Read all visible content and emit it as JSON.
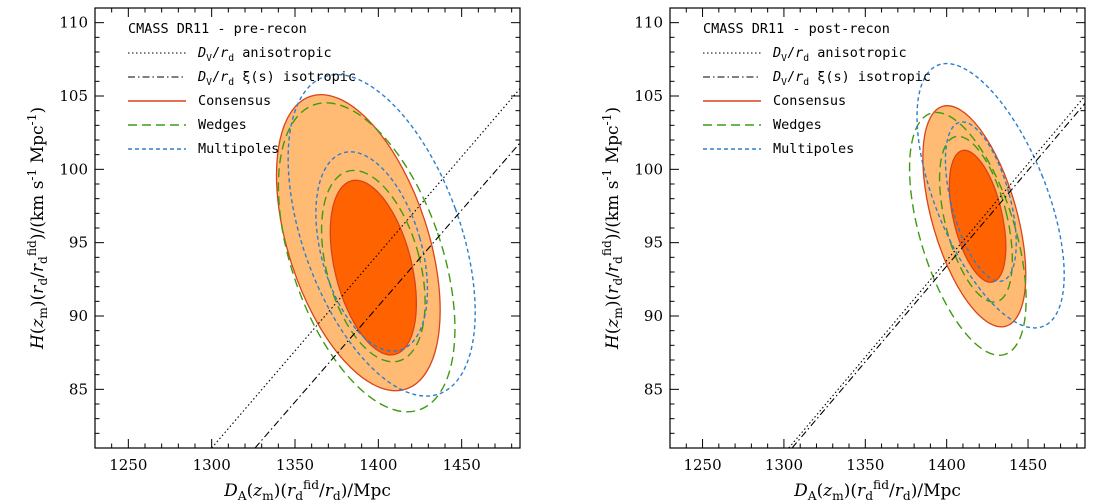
{
  "chart_data": [
    {
      "type": "contour",
      "title": "CMASS DR11 - pre-recon",
      "xlabel": "D_A(z_m)(r_d^fid/r_d)/Mpc",
      "ylabel": "H(z_m)(r_d/r_d^fid)/(km s^-1 Mpc^-1)",
      "xlim": [
        1230,
        1485
      ],
      "ylim": [
        81,
        111
      ],
      "xticks": [
        1250,
        1300,
        1350,
        1400,
        1450
      ],
      "yticks": [
        85,
        90,
        95,
        100,
        105,
        110
      ],
      "grid": false,
      "legend_position": "top-left",
      "legend": [
        {
          "label": "D_V/r_d anisotropic",
          "style": "dotted"
        },
        {
          "label": "D_V/r_d ξ(s) isotropic",
          "style": "dash-dot"
        },
        {
          "label": "Consensus",
          "style": "filled"
        },
        {
          "label": "Wedges",
          "style": "long-dash"
        },
        {
          "label": "Multipoles",
          "style": "short-dash"
        }
      ],
      "lines": [
        {
          "name": "D_V/r_d anisotropic",
          "x": [
            1300,
            1485
          ],
          "y": [
            81,
            105.5
          ]
        },
        {
          "name": "D_V/r_d ξ(s) isotropic",
          "x": [
            1326,
            1485
          ],
          "y": [
            81,
            101.8
          ]
        }
      ],
      "contours": {
        "consensus_2sigma": {
          "cx": 1388,
          "cy": 95,
          "rx": 42,
          "ry": 10.5,
          "rot": -18
        },
        "consensus_1sigma": {
          "cx": 1397,
          "cy": 93.3,
          "rx": 23,
          "ry": 6.1,
          "rot": -14
        },
        "wedges_2sigma": {
          "cx": 1393,
          "cy": 94,
          "rx": 45,
          "ry": 11,
          "rot": -19
        },
        "wedges_1sigma": {
          "cx": 1397,
          "cy": 93.4,
          "rx": 28,
          "ry": 6.7,
          "rot": -15
        },
        "multipoles_2sigma": {
          "cx": 1402,
          "cy": 95.5,
          "rx": 47,
          "ry": 11.5,
          "rot": -20
        },
        "multipoles_1sigma": {
          "cx": 1396,
          "cy": 94.4,
          "rx": 30,
          "ry": 7,
          "rot": -16
        }
      }
    },
    {
      "type": "contour",
      "title": "CMASS DR11 - post-recon",
      "xlabel": "D_A(z_m)(r_d^fid/r_d)/Mpc",
      "ylabel": "H(z_m)(r_d/r_d^fid)/(km s^-1 Mpc^-1)",
      "xlim": [
        1230,
        1485
      ],
      "ylim": [
        81,
        111
      ],
      "xticks": [
        1250,
        1300,
        1350,
        1400,
        1450
      ],
      "yticks": [
        85,
        90,
        95,
        100,
        105,
        110
      ],
      "grid": false,
      "legend_position": "top-left",
      "legend": [
        {
          "label": "D_V/r_d anisotropic",
          "style": "dotted"
        },
        {
          "label": "D_V/r_d ξ(s) isotropic",
          "style": "dash-dot"
        },
        {
          "label": "Consensus",
          "style": "filled"
        },
        {
          "label": "Wedges",
          "style": "long-dash"
        },
        {
          "label": "Multipoles",
          "style": "short-dash"
        }
      ],
      "lines": [
        {
          "name": "D_V/r_d anisotropic",
          "x": [
            1303,
            1485
          ],
          "y": [
            81,
            105
          ]
        },
        {
          "name": "D_V/r_d ξ(s) isotropic",
          "x": [
            1305,
            1485
          ],
          "y": [
            81,
            104.5
          ]
        }
      ],
      "contours": {
        "consensus_2sigma": {
          "cx": 1417,
          "cy": 96.8,
          "rx": 26,
          "ry": 7.8,
          "rot": -16
        },
        "consensus_1sigma": {
          "cx": 1419,
          "cy": 96.8,
          "rx": 15,
          "ry": 4.6,
          "rot": -13
        },
        "wedges_2sigma": {
          "cx": 1413,
          "cy": 95.6,
          "rx": 29,
          "ry": 8.6,
          "rot": -17
        },
        "wedges_1sigma": {
          "cx": 1418,
          "cy": 96.6,
          "rx": 19,
          "ry": 5.8,
          "rot": -14
        },
        "multipoles_2sigma": {
          "cx": 1427,
          "cy": 98.2,
          "rx": 34,
          "ry": 9.6,
          "rot": -22
        },
        "multipoles_1sigma": {
          "cx": 1421,
          "cy": 97.8,
          "rx": 18,
          "ry": 5.6,
          "rot": -15
        }
      }
    }
  ],
  "colors": {
    "consensus_outer": "#ffbb73",
    "consensus_inner": "#ff6200",
    "consensus_line": "#d8431a",
    "wedges": "#3f9a12",
    "multipoles": "#2b7fce",
    "text": "#000000"
  }
}
